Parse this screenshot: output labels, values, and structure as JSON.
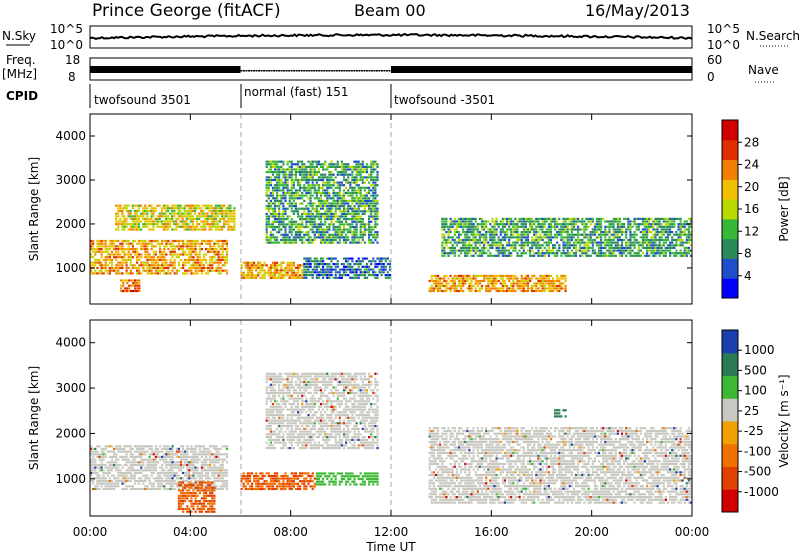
{
  "header": {
    "station": "Prince George (fitACF)",
    "beam": "Beam 00",
    "date": "16/May/2013"
  },
  "left_labels": {
    "nsky": "N.Sky",
    "freq_line1": "Freq.",
    "freq_line2": "[MHz]",
    "cpid": "CPID"
  },
  "right_labels": {
    "nsearch": "N.Search",
    "nave": "Nave"
  },
  "noise_axis": {
    "left_ticks": [
      "10^5",
      "10^0"
    ],
    "right_ticks": [
      "10^5",
      "10^0"
    ]
  },
  "freq_axis": {
    "left_ticks": [
      "18",
      "8"
    ],
    "right_ticks": [
      "60",
      "0"
    ]
  },
  "cpid_segments": [
    {
      "label": "twofsound 3501",
      "start_hour": 0,
      "end_hour": 6
    },
    {
      "label": "normal (fast) 151",
      "start_hour": 6,
      "end_hour": 12
    },
    {
      "label": "twofsound -3501",
      "start_hour": 12,
      "end_hour": 24
    }
  ],
  "range_axis": {
    "label": "Slant Range [km]",
    "ticks": [
      "4000",
      "3000",
      "2000",
      "1000"
    ],
    "tick_values": [
      4000,
      3000,
      2000,
      1000
    ],
    "range": [
      180,
      4500
    ]
  },
  "time_axis": {
    "label": "Time UT",
    "ticks": [
      "00:00",
      "04:00",
      "08:00",
      "12:00",
      "16:00",
      "20:00",
      "00:00"
    ],
    "tick_hours": [
      0,
      4,
      8,
      12,
      16,
      20,
      24
    ]
  },
  "power_colorbar": {
    "label": "Power [dB]",
    "ticks": [
      "28",
      "24",
      "20",
      "16",
      "12",
      "8",
      "4"
    ],
    "colors": [
      "#0000ff",
      "#1e4fc8",
      "#2a8a5a",
      "#38b838",
      "#b8d800",
      "#f0c000",
      "#f08000",
      "#e03000",
      "#d00000"
    ]
  },
  "velocity_colorbar": {
    "label": "Velocity [m s⁻¹]",
    "ticks": [
      "1000",
      "500",
      "100",
      "25",
      "-25",
      "-100",
      "-500",
      "-1000"
    ],
    "colors": [
      "#1a3fb0",
      "#2a7a55",
      "#3cb832",
      "#c8c8c0",
      "#f0a000",
      "#f07000",
      "#e04000",
      "#d00000"
    ]
  },
  "chart_data": [
    {
      "type": "heatmap",
      "title": "",
      "xlabel": "Time UT",
      "ylabel": "Slant Range [km]",
      "colorbar": "Power [dB]",
      "xlim": [
        0,
        24
      ],
      "ylim": [
        180,
        4500
      ],
      "features": [
        {
          "t": [
            0.0,
            5.5
          ],
          "r": [
            900,
            1700
          ],
          "level": 20
        },
        {
          "t": [
            1.0,
            5.8
          ],
          "r": [
            1900,
            2500
          ],
          "level": 16
        },
        {
          "t": [
            1.2,
            2.0
          ],
          "r": [
            500,
            800
          ],
          "level": 24
        },
        {
          "t": [
            6.0,
            8.5
          ],
          "r": [
            800,
            1200
          ],
          "level": 20
        },
        {
          "t": [
            7.0,
            11.5
          ],
          "r": [
            1600,
            3500
          ],
          "level": 12
        },
        {
          "t": [
            8.5,
            12.0
          ],
          "r": [
            800,
            1300
          ],
          "level": 8
        },
        {
          "t": [
            13.5,
            19.0
          ],
          "r": [
            500,
            900
          ],
          "level": 20
        },
        {
          "t": [
            14.0,
            24.0
          ],
          "r": [
            1300,
            2200
          ],
          "level": 12
        }
      ]
    },
    {
      "type": "heatmap",
      "title": "",
      "xlabel": "Time UT",
      "ylabel": "Slant Range [km]",
      "colorbar": "Velocity [m s⁻¹]",
      "xlim": [
        0,
        24
      ],
      "ylim": [
        180,
        4500
      ],
      "features": [
        {
          "t": [
            0.0,
            5.5
          ],
          "r": [
            800,
            1800
          ],
          "level": 0
        },
        {
          "t": [
            3.5,
            5.0
          ],
          "r": [
            300,
            1000
          ],
          "level": -500
        },
        {
          "t": [
            6.0,
            9.0
          ],
          "r": [
            800,
            1200
          ],
          "level": -500
        },
        {
          "t": [
            9.0,
            11.5
          ],
          "r": [
            900,
            1200
          ],
          "level": 100
        },
        {
          "t": [
            7.0,
            11.5
          ],
          "r": [
            1700,
            3400
          ],
          "level": 0
        },
        {
          "t": [
            13.5,
            24.0
          ],
          "r": [
            500,
            2200
          ],
          "level": 0
        },
        {
          "t": [
            18.5,
            19.0
          ],
          "r": [
            2400,
            2600
          ],
          "level": 500
        }
      ]
    }
  ]
}
